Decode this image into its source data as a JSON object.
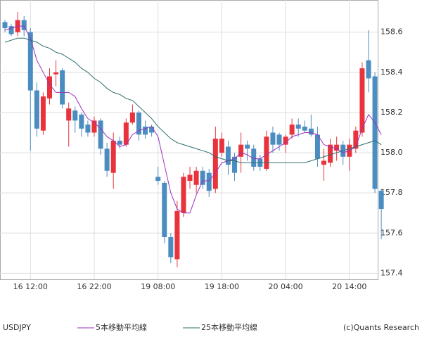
{
  "chart_data": {
    "type": "candlestick",
    "symbol": "USDJPY",
    "credit": "(c)Quants Research",
    "categories": [
      null,
      null,
      null,
      null,
      "16 12:00",
      null,
      null,
      null,
      null,
      null,
      null,
      null,
      null,
      null,
      "16 22:00",
      null,
      null,
      null,
      null,
      null,
      null,
      null,
      null,
      null,
      "19 08:00",
      null,
      null,
      null,
      null,
      null,
      null,
      null,
      null,
      null,
      "19 18:00",
      null,
      null,
      null,
      null,
      null,
      null,
      null,
      null,
      null,
      "20 04:00",
      null,
      null,
      null,
      null,
      null,
      null,
      null,
      null,
      null,
      "20 14:00",
      null,
      null,
      null,
      null,
      null
    ],
    "open": [
      158.65,
      158.63,
      158.6,
      158.66,
      158.6,
      158.31,
      158.11,
      158.27,
      158.39,
      158.41,
      158.16,
      158.21,
      158.19,
      158.14,
      158.1,
      158.16,
      158.02,
      157.9,
      158.06,
      158.04,
      158.15,
      158.2,
      158.13,
      158.13,
      157.88,
      157.85,
      157.58,
      157.47,
      157.7,
      157.86,
      157.84,
      157.91,
      157.9,
      157.82,
      158.0,
      158.03,
      157.98,
      157.98,
      158.04,
      158.02,
      157.97,
      157.92,
      158.1,
      158.09,
      158.04,
      158.09,
      158.14,
      158.13,
      158.12,
      158.09,
      157.94,
      157.95,
      158.01,
      158.04,
      157.98,
      158.02,
      158.1,
      158.46,
      158.38,
      157.81
    ],
    "high": [
      158.66,
      158.64,
      158.7,
      158.68,
      158.62,
      158.35,
      158.3,
      158.42,
      158.46,
      158.42,
      158.25,
      158.23,
      158.2,
      158.16,
      158.18,
      158.17,
      158.05,
      158.1,
      158.08,
      158.17,
      158.24,
      158.21,
      158.16,
      158.14,
      157.93,
      157.86,
      157.6,
      157.76,
      157.9,
      157.93,
      157.93,
      157.93,
      157.92,
      158.13,
      158.1,
      158.06,
      158.0,
      158.1,
      158.06,
      158.04,
      157.99,
      158.11,
      158.13,
      158.1,
      158.09,
      158.17,
      158.17,
      158.16,
      158.19,
      158.13,
      158.02,
      158.07,
      158.08,
      158.06,
      158.07,
      158.13,
      158.45,
      158.61,
      158.4,
      157.82
    ],
    "low": [
      158.6,
      158.58,
      158.58,
      158.58,
      158.01,
      158.08,
      158.09,
      158.24,
      158.33,
      158.22,
      158.03,
      158.1,
      158.08,
      158.08,
      158.08,
      157.99,
      157.88,
      157.82,
      158.02,
      158.03,
      158.14,
      158.06,
      158.07,
      158.08,
      157.84,
      157.55,
      157.45,
      157.43,
      157.68,
      157.82,
      157.8,
      157.82,
      157.78,
      157.8,
      157.98,
      157.89,
      157.86,
      157.9,
      157.96,
      157.91,
      157.91,
      157.91,
      158.0,
      158.01,
      158.0,
      158.07,
      158.08,
      158.1,
      158.08,
      157.93,
      157.86,
      157.93,
      157.96,
      157.94,
      157.91,
      158.0,
      158.08,
      158.3,
      157.8,
      157.57
    ],
    "close": [
      158.62,
      158.59,
      158.66,
      158.61,
      158.31,
      158.12,
      158.28,
      158.38,
      158.4,
      158.24,
      158.22,
      158.16,
      158.12,
      158.1,
      158.16,
      158.02,
      157.91,
      158.06,
      158.04,
      158.15,
      158.2,
      158.09,
      158.09,
      158.1,
      157.86,
      157.58,
      157.48,
      157.71,
      157.88,
      157.89,
      157.91,
      157.84,
      157.81,
      158.07,
      158.07,
      157.94,
      157.9,
      158.04,
      158.02,
      157.93,
      157.93,
      158.08,
      158.04,
      158.04,
      158.08,
      158.14,
      158.12,
      158.11,
      158.09,
      157.97,
      157.96,
      158.04,
      158.04,
      157.98,
      158.04,
      158.11,
      158.42,
      158.37,
      157.82,
      157.72
    ],
    "up_color": "#e8323c",
    "down_color": "#4b8dc0",
    "series": [
      {
        "name": "5本移動平均線",
        "color": "#9b30c0",
        "values": [
          158.61,
          158.62,
          158.63,
          158.63,
          158.57,
          158.46,
          158.4,
          158.34,
          158.3,
          158.3,
          158.3,
          158.28,
          158.22,
          158.17,
          158.15,
          158.12,
          158.08,
          158.06,
          158.03,
          158.04,
          158.09,
          158.11,
          158.12,
          158.13,
          158.08,
          157.94,
          157.8,
          157.72,
          157.7,
          157.7,
          157.79,
          157.86,
          157.86,
          157.9,
          157.95,
          157.96,
          157.97,
          158.0,
          157.99,
          157.97,
          157.97,
          157.99,
          158.01,
          158.03,
          158.05,
          158.08,
          158.09,
          158.1,
          158.1,
          158.09,
          158.04,
          158.03,
          158.02,
          158.0,
          158.01,
          158.03,
          158.12,
          158.19,
          158.15,
          158.09
        ]
      },
      {
        "name": "25本移動平均線",
        "color": "#2c6f6c",
        "values": [
          158.55,
          158.56,
          158.57,
          158.57,
          158.56,
          158.55,
          158.53,
          158.52,
          158.5,
          158.49,
          158.47,
          158.45,
          158.42,
          158.4,
          158.37,
          158.35,
          158.32,
          158.3,
          158.29,
          158.27,
          158.26,
          158.23,
          158.2,
          158.17,
          158.13,
          158.1,
          158.07,
          158.05,
          158.04,
          158.03,
          158.02,
          158.01,
          158.0,
          157.98,
          157.97,
          157.96,
          157.96,
          157.95,
          157.95,
          157.95,
          157.95,
          157.95,
          157.95,
          157.95,
          157.95,
          157.95,
          157.95,
          157.95,
          157.96,
          157.97,
          157.98,
          157.99,
          158.0,
          158.01,
          158.02,
          158.03,
          158.04,
          158.05,
          158.06,
          158.04
        ]
      }
    ],
    "ylim": [
      157.37,
      158.76
    ],
    "yticks": [
      157.4,
      157.6,
      157.8,
      {
        "value": 158,
        "label": "158.0"
      },
      158.2,
      158.4,
      158.6
    ],
    "grid": true
  }
}
